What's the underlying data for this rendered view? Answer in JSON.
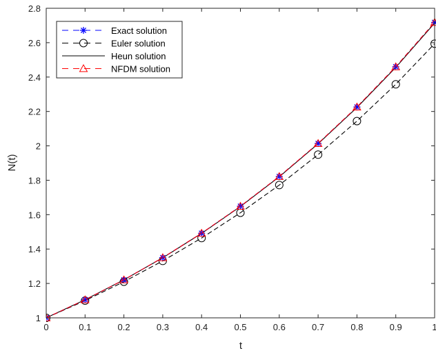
{
  "chart_data": {
    "type": "line",
    "title": "",
    "xlabel": "t",
    "ylabel": "N(t)",
    "xlim": [
      0,
      1
    ],
    "ylim": [
      1,
      2.8
    ],
    "grid": false,
    "legend_position": "top-left",
    "x_ticks": [
      "0",
      "0.1",
      "0.2",
      "0.3",
      "0.4",
      "0.5",
      "0.6",
      "0.7",
      "0.8",
      "0.9",
      "1"
    ],
    "y_ticks": [
      "1",
      "1.2",
      "1.4",
      "1.6",
      "1.8",
      "2",
      "2.2",
      "2.4",
      "2.6",
      "2.8"
    ],
    "x": [
      0,
      0.1,
      0.2,
      0.3,
      0.4,
      0.5,
      0.6,
      0.7,
      0.8,
      0.9,
      1.0
    ],
    "series": [
      {
        "name": "Exact solution",
        "color": "#0000ff",
        "line_style": "dashed",
        "marker": "asterisk",
        "values": [
          1.0,
          1.105,
          1.221,
          1.35,
          1.492,
          1.649,
          1.822,
          2.014,
          2.226,
          2.46,
          2.718
        ]
      },
      {
        "name": "Euler solution",
        "color": "#000000",
        "line_style": "dashed",
        "marker": "circle",
        "values": [
          1.0,
          1.1,
          1.21,
          1.331,
          1.464,
          1.611,
          1.772,
          1.949,
          2.144,
          2.358,
          2.594
        ]
      },
      {
        "name": "Heun solution",
        "color": "#000000",
        "line_style": "solid",
        "marker": "none",
        "values": [
          1.0,
          1.105,
          1.221,
          1.349,
          1.491,
          1.647,
          1.82,
          2.012,
          2.223,
          2.456,
          2.714
        ]
      },
      {
        "name": "NFDM solution",
        "color": "#ff0000",
        "line_style": "dashed",
        "marker": "triangle",
        "values": [
          1.0,
          1.105,
          1.221,
          1.35,
          1.492,
          1.649,
          1.822,
          2.014,
          2.226,
          2.46,
          2.718
        ]
      }
    ]
  }
}
